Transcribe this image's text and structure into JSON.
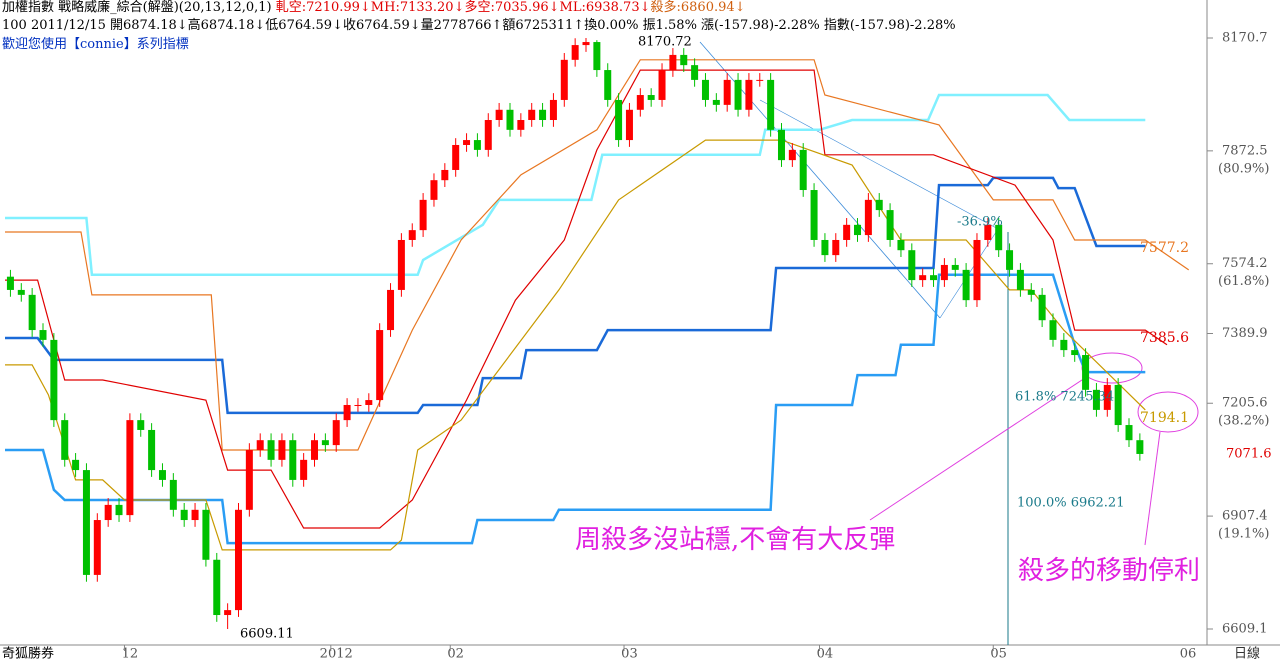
{
  "header": {
    "title": "加權指數 戰略威廉_綜合(解盤)(20,13,12,0,1)",
    "indicators": [
      "軋空:7210.99↓",
      "MH:7133.20↓",
      "多空:7035.96↓",
      "ML:6938.73↓",
      "殺多:6860.94↓"
    ],
    "info": "100 2011/12/15 開6874.18↓高6874.18↓低6764.59↓收6764.59↓量2778766↑額6725311↑換0.00% 振1.58% 漲(-157.98)-2.28% 指數(-157.98)-2.28%",
    "welcome": "歡迎您使用【connie】系列指標"
  },
  "footer": {
    "software": "奇狐勝券",
    "period": "日線"
  },
  "chart_data": {
    "type": "candlestick",
    "categories": [
      null,
      null,
      null,
      null,
      null,
      null,
      null,
      null,
      null,
      null,
      null,
      "12",
      null,
      null,
      null,
      null,
      null,
      null,
      null,
      null,
      null,
      null,
      null,
      null,
      null,
      null,
      null,
      null,
      null,
      null,
      "2012",
      null,
      null,
      null,
      null,
      null,
      null,
      null,
      null,
      null,
      null,
      "02",
      null,
      null,
      null,
      null,
      null,
      null,
      null,
      null,
      null,
      null,
      null,
      null,
      null,
      null,
      null,
      "03",
      null,
      null,
      null,
      null,
      null,
      null,
      null,
      null,
      null,
      null,
      null,
      null,
      null,
      null,
      null,
      null,
      null,
      "04",
      null,
      null,
      null,
      null,
      null,
      null,
      null,
      null,
      null,
      null,
      null,
      null,
      null,
      null,
      null,
      "05",
      null,
      null,
      null,
      null,
      null,
      null,
      null,
      null,
      null,
      null,
      null,
      null,
      null
    ],
    "next_month_label": "06",
    "up_color": "#ff0000",
    "down_color": "#00c000",
    "ohlc": [
      [
        7540,
        7558,
        7487,
        7505
      ],
      [
        7505,
        7523,
        7474,
        7492
      ],
      [
        7492,
        7510,
        7381,
        7399
      ],
      [
        7399,
        7417,
        7355,
        7373
      ],
      [
        7373,
        7391,
        7143,
        7161
      ],
      [
        7161,
        7179,
        7038,
        7056
      ],
      [
        7056,
        7074,
        7011,
        7029
      ],
      [
        7029,
        7047,
        6734,
        6752
      ],
      [
        6752,
        6915,
        6734,
        6897
      ],
      [
        6897,
        6955,
        6879,
        6937
      ],
      [
        6937,
        6955,
        6892,
        6910
      ],
      [
        6910,
        7179,
        6892,
        7161
      ],
      [
        7161,
        7179,
        7117,
        7135
      ],
      [
        7135,
        7153,
        7011,
        7029
      ],
      [
        7029,
        7047,
        6985,
        7003
      ],
      [
        7003,
        7021,
        6906,
        6924
      ],
      [
        6924,
        6942,
        6879,
        6897
      ],
      [
        6897,
        6942,
        6879,
        6924
      ],
      [
        6924,
        6942,
        6774,
        6792
      ],
      [
        6792,
        6810,
        6628,
        6646
      ],
      [
        6646,
        6677,
        6609.1,
        6659
      ],
      [
        6659,
        6942,
        6641,
        6924
      ],
      [
        6924,
        7100,
        6906,
        7082
      ],
      [
        7082,
        7126,
        7064,
        7108
      ],
      [
        7108,
        7126,
        7038,
        7056
      ],
      [
        7056,
        7126,
        7038,
        7108
      ],
      [
        7108,
        7126,
        6985,
        7003
      ],
      [
        7003,
        7074,
        6985,
        7056
      ],
      [
        7056,
        7126,
        7038,
        7108
      ],
      [
        7108,
        7126,
        7077,
        7095
      ],
      [
        7095,
        7179,
        7077,
        7161
      ],
      [
        7161,
        7219,
        7143,
        7201
      ],
      [
        7201,
        7219,
        7183,
        7201
      ],
      [
        7201,
        7232,
        7183,
        7214
      ],
      [
        7214,
        7417,
        7196,
        7399
      ],
      [
        7399,
        7523,
        7381,
        7505
      ],
      [
        7505,
        7655,
        7487,
        7637
      ],
      [
        7637,
        7681,
        7619,
        7663
      ],
      [
        7663,
        7761,
        7645,
        7743
      ],
      [
        7743,
        7813,
        7725,
        7795
      ],
      [
        7795,
        7840,
        7777,
        7822
      ],
      [
        7822,
        7906,
        7804,
        7888
      ],
      [
        7888,
        7919,
        7870,
        7901
      ],
      [
        7901,
        7919,
        7857,
        7875
      ],
      [
        7875,
        7972,
        7857,
        7954
      ],
      [
        7954,
        7999,
        7936,
        7981
      ],
      [
        7981,
        7999,
        7910,
        7928
      ],
      [
        7928,
        7972,
        7910,
        7954
      ],
      [
        7954,
        7999,
        7936,
        7981
      ],
      [
        7981,
        7999,
        7936,
        7954
      ],
      [
        7954,
        8025,
        7936,
        8007
      ],
      [
        8007,
        8131,
        7989,
        8113
      ],
      [
        8113,
        8170,
        8095,
        8152
      ],
      [
        8152,
        8170.7,
        8134,
        8160
      ],
      [
        8160,
        8165,
        8068,
        8086
      ],
      [
        8086,
        8104,
        7989,
        8007
      ],
      [
        8007,
        8025,
        7883,
        7901
      ],
      [
        7901,
        7999,
        7883,
        7981
      ],
      [
        7981,
        8038,
        7963,
        8020
      ],
      [
        8020,
        8038,
        7989,
        8007
      ],
      [
        8007,
        8104,
        7989,
        8086
      ],
      [
        8086,
        8144,
        8068,
        8126
      ],
      [
        8126,
        8144,
        8081,
        8099
      ],
      [
        8099,
        8117,
        8042,
        8060
      ],
      [
        8060,
        8078,
        7989,
        8007
      ],
      [
        8007,
        8025,
        7976,
        7994
      ],
      [
        7994,
        8078,
        7976,
        8060
      ],
      [
        8060,
        8078,
        7963,
        7981
      ],
      [
        7981,
        8078,
        7963,
        8060
      ],
      [
        8060,
        8078,
        8042,
        8060
      ],
      [
        8060,
        8078,
        7910,
        7928
      ],
      [
        7928,
        7946,
        7830,
        7848
      ],
      [
        7848,
        7893,
        7830,
        7875
      ],
      [
        7875,
        7893,
        7751,
        7769
      ],
      [
        7769,
        7787,
        7619,
        7637
      ],
      [
        7637,
        7655,
        7579,
        7597
      ],
      [
        7597,
        7655,
        7579,
        7637
      ],
      [
        7637,
        7695,
        7619,
        7677
      ],
      [
        7677,
        7695,
        7632,
        7650
      ],
      [
        7650,
        7761,
        7632,
        7743
      ],
      [
        7743,
        7761,
        7698,
        7716
      ],
      [
        7716,
        7734,
        7619,
        7637
      ],
      [
        7637,
        7655,
        7592,
        7610
      ],
      [
        7610,
        7628,
        7513,
        7531
      ],
      [
        7531,
        7562,
        7513,
        7544
      ],
      [
        7544,
        7562,
        7513,
        7531
      ],
      [
        7531,
        7589,
        7513,
        7571
      ],
      [
        7571,
        7589,
        7540,
        7558
      ],
      [
        7558,
        7576,
        7460,
        7478
      ],
      [
        7478,
        7655,
        7460,
        7637
      ],
      [
        7637,
        7695,
        7619,
        7677
      ],
      [
        7677,
        7695,
        7592,
        7610
      ],
      [
        7610,
        7628,
        7540,
        7558
      ],
      [
        7558,
        7576,
        7487,
        7505
      ],
      [
        7505,
        7523,
        7474,
        7492
      ],
      [
        7492,
        7510,
        7407,
        7425
      ],
      [
        7425,
        7443,
        7355,
        7373
      ],
      [
        7373,
        7391,
        7328,
        7346
      ],
      [
        7346,
        7364,
        7315,
        7333
      ],
      [
        7333,
        7351,
        7223,
        7241
      ],
      [
        7241,
        7259,
        7170,
        7188
      ],
      [
        7188,
        7272,
        7170,
        7254
      ],
      [
        7254,
        7272,
        7130,
        7148
      ],
      [
        7148,
        7166,
        7090,
        7108
      ],
      [
        7108,
        7126,
        7054,
        7071.6
      ]
    ],
    "lines": [
      {
        "color": "#80f0ff",
        "width": 2.5,
        "x": [
          -0.5,
          7,
          7.5,
          37.5,
          38,
          43.5,
          45,
          53.5,
          54.5,
          69,
          69.5,
          74.5,
          77.5,
          84.5,
          85.5,
          95.5,
          97.5,
          104.5
        ],
        "values": [
          7695,
          7695,
          7545,
          7545,
          7584,
          7677,
          7743,
          7743,
          7862,
          7862,
          7928,
          7928,
          7954,
          7954,
          8020,
          8020,
          7954,
          7954
        ]
      },
      {
        "color": "#1a6ad8",
        "width": 2.5,
        "x": [
          -0.5,
          2.5,
          4,
          19.5,
          20,
          37.5,
          38,
          43,
          43.5,
          47,
          47.5,
          54,
          55,
          70,
          70.5,
          85,
          85.5,
          90,
          90.5,
          96,
          96.5,
          98,
          100,
          104.5
        ],
        "values": [
          7378,
          7378,
          7320,
          7320,
          7180,
          7180,
          7201,
          7201,
          7272,
          7272,
          7346,
          7346,
          7399,
          7399,
          7563,
          7563,
          7782,
          7782,
          7801,
          7801,
          7774,
          7774,
          7621,
          7621
        ]
      },
      {
        "color": "#2a9df4",
        "width": 2.5,
        "x": [
          -0.5,
          3,
          4,
          5,
          19.5,
          20,
          42.5,
          43,
          50,
          50.5,
          70,
          70.5,
          77.5,
          78,
          81.5,
          82,
          85,
          85.5,
          96,
          98,
          99,
          104.5
        ],
        "values": [
          7082,
          7082,
          6977,
          6950,
          6950,
          6836,
          6836,
          6897,
          6897,
          6924,
          6924,
          7201,
          7201,
          7280,
          7280,
          7360,
          7360,
          7545,
          7545,
          7360,
          7288,
          7288
        ]
      },
      {
        "color": "#e87722",
        "width": 1.2,
        "end_label": "7577.2",
        "x": [
          -0.5,
          6.5,
          7.5,
          18.5,
          19.5,
          32,
          37,
          41.5,
          47,
          54,
          58,
          74,
          75,
          85.5,
          90.5,
          96,
          98,
          104.5,
          108.5
        ],
        "values": [
          7658,
          7658,
          7492,
          7492,
          7082,
          7082,
          7399,
          7637,
          7809,
          7928,
          8113,
          8113,
          8020,
          7941,
          7743,
          7743,
          7637,
          7637,
          7558
        ]
      },
      {
        "color": "#e00000",
        "width": 1.2,
        "end_label": "7385.6",
        "x": [
          -0.5,
          2.5,
          5,
          8.5,
          18,
          20,
          24,
          27,
          34,
          37,
          42,
          46.5,
          51,
          54,
          58,
          74,
          75,
          85,
          92.5,
          96,
          98,
          104.5,
          106.5
        ],
        "values": [
          7531,
          7531,
          7267,
          7267,
          7214,
          7029,
          7029,
          6876,
          6876,
          6950,
          7214,
          7478,
          7637,
          7875,
          8086,
          8086,
          7862,
          7862,
          7782,
          7637,
          7399,
          7399,
          7360
        ]
      },
      {
        "color": "#c89a00",
        "width": 1.2,
        "end_label": "7194.1",
        "x": [
          -0.5,
          2,
          3.5,
          6,
          8.5,
          10.5,
          18,
          19.5,
          35,
          36,
          37.5,
          41.5,
          50.5,
          56,
          64,
          71,
          77.5,
          82,
          88,
          92,
          94,
          97,
          104.5
        ],
        "values": [
          7307,
          7307,
          7228,
          7003,
          7003,
          6950,
          6950,
          6818,
          6818,
          6844,
          7082,
          7161,
          7505,
          7743,
          7901,
          7901,
          7835,
          7637,
          7637,
          7505,
          7505,
          7399,
          7188
        ]
      }
    ],
    "annotations": [
      "8170.72",
      "6609.11",
      "-36.9%",
      "61.8% 7245.34",
      "100.0% 6962.21",
      "周殺多沒站穩,不會有大反彈",
      "殺多的移動停利"
    ],
    "ylim": [
      6566.8,
      8271.1
    ],
    "yticks": [
      8170.7,
      7872.5,
      7574.2,
      7389.9,
      7205.6,
      6907.4,
      6609.1
    ],
    "fib_ticks": [
      {
        "value": 7872.5,
        "label": "(80.9%)"
      },
      {
        "value": 7574.2,
        "label": "(61.8%)"
      },
      {
        "value": 7205.6,
        "label": "(38.2%)"
      },
      {
        "value": 6907.4,
        "label": "(19.1%)"
      }
    ],
    "last_price": 7071.6
  }
}
